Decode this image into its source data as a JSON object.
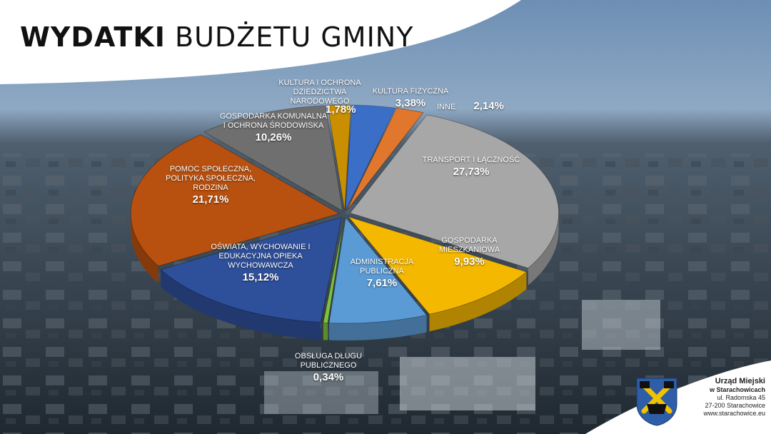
{
  "title": {
    "bold": "WYDATKI",
    "light": "BUDŻETU GMINY"
  },
  "chart_data": {
    "type": "pie",
    "slices": [
      {
        "label": "KULTURA FIZYCZNA",
        "value": "3,38%",
        "pct": 3.38,
        "color": "#3b6fc7"
      },
      {
        "label": "INNE",
        "value": "2,14%",
        "pct": 2.14,
        "color": "#e0772c"
      },
      {
        "label": "TRANSPORT I ŁĄCZNOŚĆ",
        "value": "27,73%",
        "pct": 27.73,
        "color": "#a7a7a7"
      },
      {
        "label": "GOSPODARKA MIESZKANIOWA",
        "value": "9,93%",
        "pct": 9.93,
        "color": "#f5b800"
      },
      {
        "label": "ADMINISTRACJA PUBLICZNA",
        "value": "7,61%",
        "pct": 7.61,
        "color": "#5b9bd5"
      },
      {
        "label": "OBSŁUGA DŁUGU PUBLICZNEGO",
        "value": "0,34%",
        "pct": 0.34,
        "color": "#7cc23f"
      },
      {
        "label": "OŚWIATA, WYCHOWANIE I EDUKACYJNA OPIEKA WYCHOWAWCZA",
        "value": "15,12%",
        "pct": 15.12,
        "color": "#2e4f9a"
      },
      {
        "label": "POMOC SPOŁECZNA, POLITYKA SPOŁECZNA, RODZINA",
        "value": "21,71%",
        "pct": 21.71,
        "color": "#b8500f"
      },
      {
        "label": "GOSPODARKA KOMUNALNA I OCHRONA ŚRODOWISKA",
        "value": "10,26%",
        "pct": 10.26,
        "color": "#6f6f6f"
      },
      {
        "label": "KULTURA I OCHRONA DZIEDZICTWA NARODOWEGO",
        "value": "1,78%",
        "pct": 1.78,
        "color": "#c98f00"
      }
    ]
  },
  "labels": {
    "kultura_fizyczna": {
      "text": "KULTURA FIZYCZNA",
      "pct": "3,38%"
    },
    "inne": {
      "text": "INNE",
      "pct": "2,14%"
    },
    "transport": {
      "text": "TRANSPORT I ŁĄCZNOŚĆ",
      "pct": "27,73%"
    },
    "mieszkaniowa": {
      "l1": "GOSPODARKA",
      "l2": "MIESZKANIOWA",
      "pct": "9,93%"
    },
    "administracja": {
      "l1": "ADMINISTRACJA",
      "l2": "PUBLICZNA",
      "pct": "7,61%"
    },
    "dlug": {
      "l1": "OBSŁUGA DŁUGU",
      "l2": "PUBLICZNEGO",
      "pct": "0,34%"
    },
    "oswiata": {
      "l1": "OŚWIATA, WYCHOWANIE I",
      "l2": "EDUKACYJNA OPIEKA",
      "l3": "WYCHOWAWCZA",
      "pct": "15,12%"
    },
    "pomoc": {
      "l1": "POMOC SPOŁECZNA,",
      "l2": "POLITYKA SPOŁECZNA,",
      "l3": "RODZINA",
      "pct": "21,71%"
    },
    "komunalna": {
      "l1": "GOSPODARKA KOMUNALNA",
      "l2": "I OCHRONA ŚRODOWISKA",
      "pct": "10,26%"
    },
    "kultura": {
      "l1": "KULTURA I OCHRONA",
      "l2": "DZIEDZICTWA",
      "l3": "NARODOWEGO",
      "pct": "1,78%"
    }
  },
  "logo": {
    "line1": "Urząd Miejski",
    "line2": "w Starachowicach",
    "line3": "ul. Radomska 45",
    "line4": "27-200 Starachowice",
    "line5": "www.starachowice.eu"
  }
}
